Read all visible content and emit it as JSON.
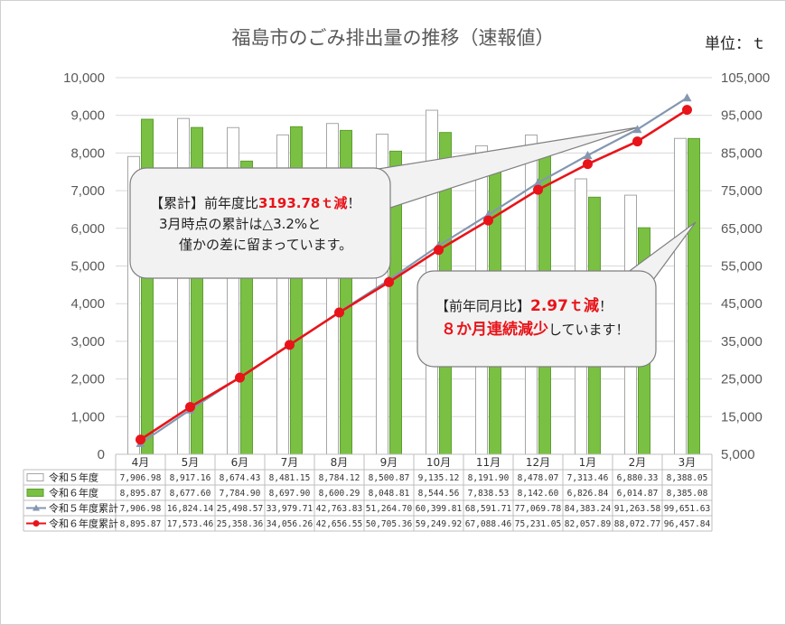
{
  "chart_data": {
    "type": "bar+line",
    "title": "福島市のごみ排出量の推移（速報値）",
    "unit_label": "単位：ｔ",
    "categories": [
      "4月",
      "5月",
      "6月",
      "7月",
      "8月",
      "9月",
      "10月",
      "11月",
      "12月",
      "1月",
      "2月",
      "3月"
    ],
    "y_left": {
      "min": 0,
      "max": 10000,
      "ticks": [
        "0",
        "1,000",
        "2,000",
        "3,000",
        "4,000",
        "5,000",
        "6,000",
        "7,000",
        "8,000",
        "9,000",
        "10,000"
      ]
    },
    "y_right": {
      "min": 5000,
      "max": 105000,
      "ticks": [
        "5,000",
        "15,000",
        "25,000",
        "35,000",
        "45,000",
        "55,000",
        "65,000",
        "75,000",
        "85,000",
        "95,000",
        "105,000"
      ]
    },
    "series": [
      {
        "name": "令和５年度",
        "kind": "bar",
        "axis": "left",
        "color": "#ffffff",
        "values": [
          7906.98,
          8917.16,
          8674.43,
          8481.15,
          8784.12,
          8500.87,
          9135.12,
          8191.9,
          8478.07,
          7313.46,
          6880.33,
          8388.05
        ],
        "labels": [
          "7,906.98",
          "8,917.16",
          "8,674.43",
          "8,481.15",
          "8,784.12",
          "8,500.87",
          "9,135.12",
          "8,191.90",
          "8,478.07",
          "7,313.46",
          "6,880.33",
          "8,388.05"
        ]
      },
      {
        "name": "令和６年度",
        "kind": "bar",
        "axis": "left",
        "color": "#7ac143",
        "values": [
          8895.87,
          8677.6,
          7784.9,
          8697.9,
          8600.29,
          8048.81,
          8544.56,
          7838.53,
          8142.6,
          6826.84,
          6014.87,
          8385.08
        ],
        "labels": [
          "8,895.87",
          "8,677.60",
          "7,784.90",
          "8,697.90",
          "8,600.29",
          "8,048.81",
          "8,544.56",
          "7,838.53",
          "8,142.60",
          "6,826.84",
          "6,014.87",
          "8,385.08"
        ]
      },
      {
        "name": "令和５年度累計",
        "kind": "line",
        "axis": "right",
        "color": "#8497b0",
        "values": [
          7906.98,
          16824.14,
          25498.57,
          33979.71,
          42763.83,
          51264.7,
          60399.81,
          68591.71,
          77069.78,
          84383.24,
          91263.58,
          99651.63
        ],
        "labels": [
          "7,906.98",
          "16,824.14",
          "25,498.57",
          "33,979.71",
          "42,763.83",
          "51,264.70",
          "60,399.81",
          "68,591.71",
          "77,069.78",
          "84,383.24",
          "91,263.58",
          "99,651.63"
        ]
      },
      {
        "name": "令和６年度累計",
        "kind": "line",
        "axis": "right",
        "color": "#e8141a",
        "values": [
          8895.87,
          17573.46,
          25358.36,
          34056.26,
          42656.55,
          50705.36,
          59249.92,
          67088.46,
          75231.05,
          82057.89,
          88072.77,
          96457.84
        ],
        "labels": [
          "8,895.87",
          "17,573.46",
          "25,358.36",
          "34,056.26",
          "42,656.55",
          "50,705.36",
          "59,249.92",
          "67,088.46",
          "75,231.05",
          "82,057.89",
          "88,072.77",
          "96,457.84"
        ]
      }
    ]
  },
  "callout1": {
    "line1_prefix": "【累計】前年度比",
    "line1_value": "3193.78ｔ減",
    "line1_suffix": "！",
    "line2": "3月時点の累計は△3.2%と",
    "line3": "僅かの差に留まっています。"
  },
  "callout2": {
    "line1_prefix": "【前年同月比】",
    "line1_value": "2.97ｔ減",
    "line1_suffix": "！",
    "line2_value": "８か月連続減少",
    "line2_suffix": "しています！"
  },
  "colors": {
    "bar_prev": "#ffffff",
    "bar_curr": "#7ac143",
    "line_prev": "#8497b0",
    "line_curr": "#e8141a"
  }
}
